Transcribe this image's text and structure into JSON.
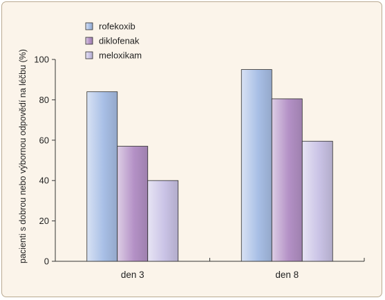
{
  "chart_data": {
    "type": "bar",
    "categories": [
      "den 3",
      "den 8"
    ],
    "series": [
      {
        "name": "rofekoxib",
        "values": [
          84,
          95
        ],
        "color": "#a8bfe6"
      },
      {
        "name": "diklofenak",
        "values": [
          57,
          80.5
        ],
        "color": "#b491c6"
      },
      {
        "name": "meloxikam",
        "values": [
          40,
          59.5
        ],
        "color": "#cac3e6"
      }
    ],
    "ylabel": "pacienti s dobrou nebo výbornou odpovědí na léčbu (%)",
    "xlabel": "",
    "ylim": [
      0,
      100
    ],
    "yticks": [
      0,
      20,
      40,
      60,
      80,
      100
    ],
    "grid": false,
    "legend_position": "top-left"
  }
}
